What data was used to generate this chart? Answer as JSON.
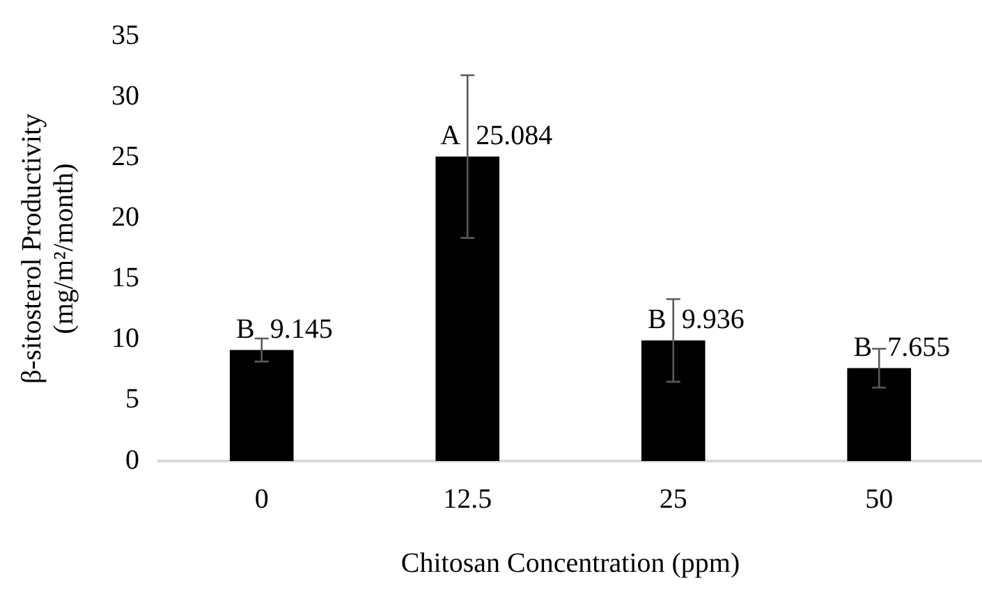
{
  "chart_data": {
    "type": "bar",
    "xlabel": "Chitosan Concentration (ppm)",
    "ylabel": "β-sitosterol Productivity\n(mg/m²/month)",
    "categories": [
      "0",
      "12.5",
      "25",
      "50"
    ],
    "values": [
      9.145,
      25.084,
      9.936,
      7.655
    ],
    "errors": [
      0.95,
      6.7,
      3.4,
      1.6
    ],
    "value_labels": [
      "B 9.145",
      "A 25.084",
      "B 9.936",
      "B 7.655"
    ],
    "color": "#000000",
    "ylim": [
      0,
      35
    ],
    "yticks": [
      0,
      5,
      10,
      15,
      20,
      25,
      30,
      35
    ],
    "grid": false,
    "legend": false
  }
}
